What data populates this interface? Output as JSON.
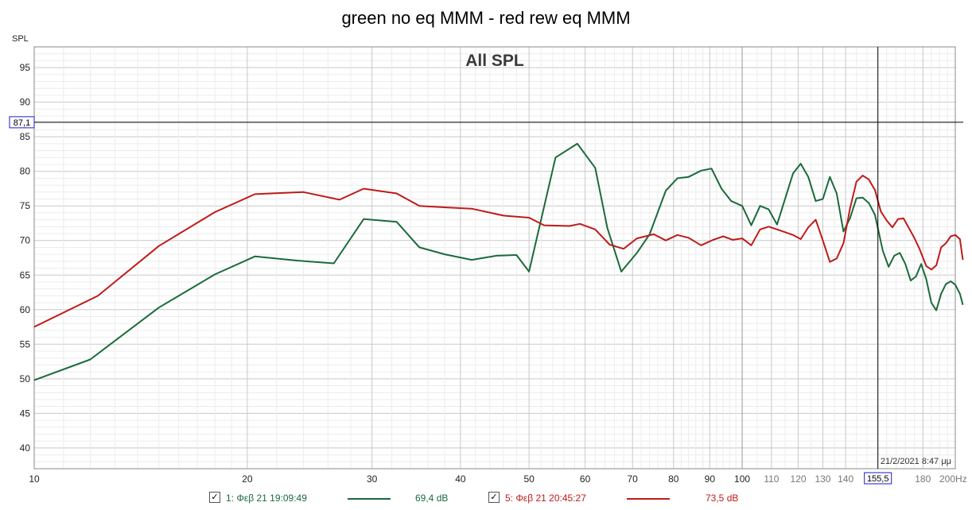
{
  "chart_data": {
    "type": "line",
    "title": "green no eq MMM - red rew eq MMM",
    "inner_title": "All SPL",
    "ylabel": "SPL",
    "xunit": "Hz",
    "xscale": "log",
    "xlim": [
      10,
      200
    ],
    "ylim": [
      37,
      98
    ],
    "x_ticks": [
      {
        "v": 10,
        "label": "10",
        "major": true
      },
      {
        "v": 20,
        "label": "20",
        "major": true
      },
      {
        "v": 30,
        "label": "30",
        "major": true
      },
      {
        "v": 40,
        "label": "40",
        "major": true
      },
      {
        "v": 50,
        "label": "50",
        "major": true
      },
      {
        "v": 60,
        "label": "60",
        "major": true
      },
      {
        "v": 70,
        "label": "70",
        "major": true
      },
      {
        "v": 80,
        "label": "80",
        "major": true
      },
      {
        "v": 90,
        "label": "90",
        "major": true
      },
      {
        "v": 100,
        "label": "100",
        "major": true
      },
      {
        "v": 110,
        "label": "110",
        "major": false
      },
      {
        "v": 120,
        "label": "120",
        "major": false
      },
      {
        "v": 130,
        "label": "130",
        "major": false
      },
      {
        "v": 140,
        "label": "140",
        "major": false
      },
      {
        "v": 180,
        "label": "180",
        "major": false
      },
      {
        "v": 200,
        "label": "200Hz",
        "major": false
      }
    ],
    "y_ticks": [
      40,
      45,
      50,
      55,
      60,
      65,
      70,
      75,
      80,
      85,
      90,
      95
    ],
    "cursor": {
      "x": 155.5,
      "y": 87.1,
      "x_label": "155,5",
      "y_label": "87,1"
    },
    "timestamp": "21/2/2021 8:47 μμ",
    "grid": true,
    "series": [
      {
        "name": "1: Φεβ 21 19:09:49",
        "value_label": "69,4 dB",
        "color": "#1a6b3a",
        "points": [
          [
            10,
            49.8
          ],
          [
            12,
            52.8
          ],
          [
            15,
            60.3
          ],
          [
            18,
            65.1
          ],
          [
            20.5,
            67.7
          ],
          [
            23.5,
            67.1
          ],
          [
            26.5,
            66.7
          ],
          [
            29.2,
            73.1
          ],
          [
            32.5,
            72.7
          ],
          [
            35,
            69.0
          ],
          [
            38,
            68.0
          ],
          [
            41.5,
            67.2
          ],
          [
            45,
            67.8
          ],
          [
            48,
            67.9
          ],
          [
            50,
            65.5
          ],
          [
            54.5,
            82.0
          ],
          [
            58.5,
            84.0
          ],
          [
            62,
            80.5
          ],
          [
            64.5,
            71.8
          ],
          [
            67.5,
            65.5
          ],
          [
            71,
            68.2
          ],
          [
            74,
            70.9
          ],
          [
            78,
            77.2
          ],
          [
            81,
            79.0
          ],
          [
            84,
            79.2
          ],
          [
            87.5,
            80.1
          ],
          [
            90.5,
            80.4
          ],
          [
            93.5,
            77.5
          ],
          [
            96.5,
            75.7
          ],
          [
            100,
            75.0
          ],
          [
            103,
            72.2
          ],
          [
            106,
            75.0
          ],
          [
            109,
            74.5
          ],
          [
            112,
            72.3
          ],
          [
            118,
            79.7
          ],
          [
            121,
            81.1
          ],
          [
            124,
            79.2
          ],
          [
            127,
            75.7
          ],
          [
            130,
            76.0
          ],
          [
            133,
            79.2
          ],
          [
            136,
            76.8
          ],
          [
            139,
            71.3
          ],
          [
            142,
            73.2
          ],
          [
            145,
            76.1
          ],
          [
            148,
            76.2
          ],
          [
            151,
            75.4
          ],
          [
            154,
            73.7
          ],
          [
            158,
            68.5
          ],
          [
            161,
            66.2
          ],
          [
            164,
            67.8
          ],
          [
            167,
            68.2
          ],
          [
            170,
            66.6
          ],
          [
            173,
            64.2
          ],
          [
            176,
            64.8
          ],
          [
            179,
            66.6
          ],
          [
            182,
            64.4
          ],
          [
            185,
            61.0
          ],
          [
            188,
            59.9
          ],
          [
            191,
            62.3
          ],
          [
            194,
            63.7
          ],
          [
            197,
            64.1
          ],
          [
            200,
            63.6
          ],
          [
            203,
            62.3
          ],
          [
            205,
            60.7
          ]
        ]
      },
      {
        "name": "5: Φεβ 21 20:45:27",
        "value_label": "73,5 dB",
        "color": "#c01a1a",
        "points": [
          [
            10,
            57.5
          ],
          [
            12.3,
            62.0
          ],
          [
            15,
            69.2
          ],
          [
            18,
            74.1
          ],
          [
            20.5,
            76.7
          ],
          [
            24,
            77.0
          ],
          [
            27,
            75.9
          ],
          [
            29.2,
            77.5
          ],
          [
            32.5,
            76.8
          ],
          [
            35,
            75.0
          ],
          [
            38,
            74.8
          ],
          [
            41.5,
            74.6
          ],
          [
            46,
            73.6
          ],
          [
            50,
            73.3
          ],
          [
            52.5,
            72.2
          ],
          [
            57,
            72.1
          ],
          [
            59,
            72.4
          ],
          [
            62,
            71.6
          ],
          [
            65,
            69.4
          ],
          [
            68,
            68.8
          ],
          [
            71,
            70.3
          ],
          [
            75,
            70.9
          ],
          [
            78,
            70.0
          ],
          [
            81,
            70.8
          ],
          [
            84,
            70.4
          ],
          [
            87.5,
            69.3
          ],
          [
            91,
            70.1
          ],
          [
            94,
            70.6
          ],
          [
            97,
            70.1
          ],
          [
            100,
            70.3
          ],
          [
            103,
            69.3
          ],
          [
            106,
            71.6
          ],
          [
            109,
            72.0
          ],
          [
            112,
            71.6
          ],
          [
            115,
            71.2
          ],
          [
            118,
            70.8
          ],
          [
            121,
            70.2
          ],
          [
            124,
            71.9
          ],
          [
            127,
            73.0
          ],
          [
            130,
            70.0
          ],
          [
            133,
            66.9
          ],
          [
            136,
            67.4
          ],
          [
            139,
            69.6
          ],
          [
            142,
            74.6
          ],
          [
            145,
            78.5
          ],
          [
            148,
            79.4
          ],
          [
            151,
            78.8
          ],
          [
            154,
            77.3
          ],
          [
            157,
            74.2
          ],
          [
            160,
            72.9
          ],
          [
            163,
            71.9
          ],
          [
            166,
            73.1
          ],
          [
            169,
            73.2
          ],
          [
            172,
            71.8
          ],
          [
            175,
            70.4
          ],
          [
            178,
            68.8
          ],
          [
            182,
            66.3
          ],
          [
            185,
            65.8
          ],
          [
            188,
            66.4
          ],
          [
            191,
            69.0
          ],
          [
            194,
            69.6
          ],
          [
            197,
            70.6
          ],
          [
            200,
            70.8
          ],
          [
            203,
            70.2
          ],
          [
            205,
            67.2
          ]
        ]
      }
    ]
  }
}
